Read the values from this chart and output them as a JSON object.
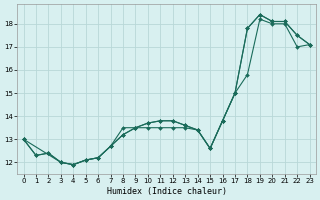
{
  "xlabel": "Humidex (Indice chaleur)",
  "background_color": "#d8f0f0",
  "grid_color": "#b8d8d8",
  "line_color": "#1a6b5a",
  "xlim": [
    -0.5,
    23.5
  ],
  "ylim": [
    11.5,
    18.85
  ],
  "yticks": [
    12,
    13,
    14,
    15,
    16,
    17,
    18
  ],
  "xticks": [
    0,
    1,
    2,
    3,
    4,
    5,
    6,
    7,
    8,
    9,
    10,
    11,
    12,
    13,
    14,
    15,
    16,
    17,
    18,
    19,
    20,
    21,
    22,
    23
  ],
  "series1": {
    "x": [
      0,
      1,
      2,
      3,
      4,
      5,
      6,
      7,
      8,
      9,
      10,
      11,
      12,
      13,
      14,
      15,
      16,
      17,
      18,
      19,
      20,
      21,
      22,
      23
    ],
    "y": [
      13.0,
      12.3,
      12.4,
      12.0,
      11.9,
      12.1,
      12.2,
      12.7,
      13.2,
      13.5,
      13.7,
      13.8,
      13.8,
      13.6,
      13.4,
      12.6,
      13.8,
      15.0,
      15.8,
      18.2,
      18.0,
      18.0,
      17.0,
      17.1
    ]
  },
  "series2": {
    "x": [
      0,
      1,
      2,
      3,
      4,
      5,
      6,
      7,
      8,
      9,
      10,
      11,
      12,
      13,
      14,
      15,
      16,
      17,
      18,
      19,
      20,
      21,
      22,
      23
    ],
    "y": [
      13.0,
      12.3,
      12.4,
      12.0,
      11.9,
      12.1,
      12.2,
      12.7,
      13.2,
      13.5,
      13.7,
      13.8,
      13.8,
      13.6,
      13.4,
      12.6,
      13.8,
      15.0,
      17.8,
      18.4,
      18.1,
      18.1,
      17.5,
      17.1
    ]
  },
  "series3": {
    "x": [
      0,
      3,
      4,
      5,
      6,
      7,
      8,
      9,
      10,
      11,
      12,
      13,
      14,
      15,
      16,
      17,
      18,
      19,
      20,
      21,
      22,
      23
    ],
    "y": [
      13.0,
      12.0,
      11.9,
      12.1,
      12.2,
      12.7,
      13.5,
      13.5,
      13.5,
      13.5,
      13.5,
      13.5,
      13.4,
      12.6,
      13.8,
      15.0,
      17.8,
      18.4,
      18.1,
      18.1,
      17.5,
      17.1
    ]
  }
}
